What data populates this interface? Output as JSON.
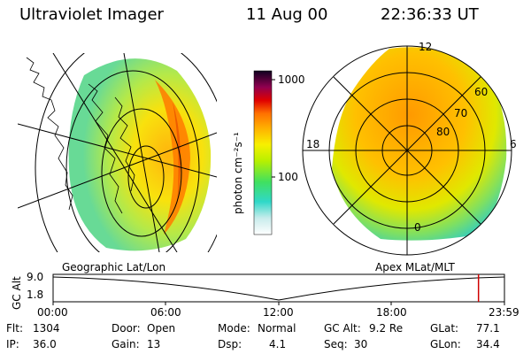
{
  "header": {
    "instrument": "Ultraviolet Imager",
    "date": "11 Aug 00",
    "time": "22:36:33 UT"
  },
  "colorbar": {
    "unit_label": "photon cm⁻²s⁻¹",
    "ticks": [
      "1000",
      "100"
    ]
  },
  "panels": {
    "left_label": "Geographic Lat/Lon",
    "right_label": "Apex  MLat/MLT"
  },
  "polar_plot": {
    "mlt_labels": {
      "top": "12",
      "left": "18",
      "right": "6",
      "bottom": "0"
    },
    "lat_labels": [
      "60",
      "70",
      "80"
    ]
  },
  "altitude_plot": {
    "ylabel": "GC Alt",
    "yticks": [
      "9.0",
      "1.8"
    ],
    "xticks": [
      "00:00",
      "06:00",
      "12:00",
      "18:00",
      "23:59"
    ],
    "marker_time_fraction": 0.9425
  },
  "status": {
    "flt": {
      "label": "Flt:",
      "value": "1304"
    },
    "ip": {
      "label": "IP:",
      "value": "36.0"
    },
    "door": {
      "label": "Door:",
      "value": "Open"
    },
    "gain": {
      "label": "Gain:",
      "value": "13"
    },
    "mode": {
      "label": "Mode:",
      "value": "Normal"
    },
    "dsp": {
      "label": "Dsp:",
      "value": "4.1"
    },
    "gcalt": {
      "label": "GC Alt:",
      "value": "9.2 Re"
    },
    "seq": {
      "label": "Seq:",
      "value": "30"
    },
    "glat": {
      "label": "GLat:",
      "value": "77.1"
    },
    "glon": {
      "label": "GLon:",
      "value": "34.4"
    }
  },
  "colors": {
    "marker": "#d00000"
  }
}
